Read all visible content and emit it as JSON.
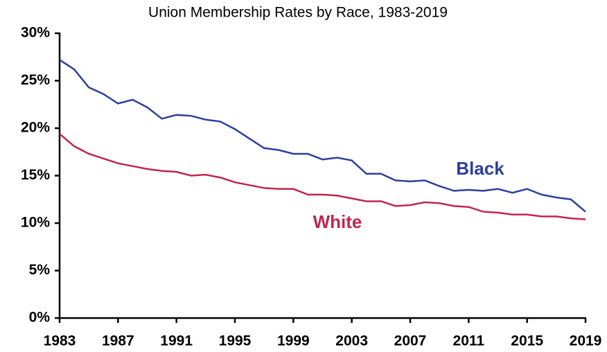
{
  "chart_data": {
    "type": "line",
    "title": "Union Membership Rates by Race, 1983-2019",
    "x": [
      1983,
      1984,
      1985,
      1986,
      1987,
      1988,
      1989,
      1990,
      1991,
      1992,
      1993,
      1994,
      1995,
      1996,
      1997,
      1998,
      1999,
      2000,
      2001,
      2002,
      2003,
      2004,
      2005,
      2006,
      2007,
      2008,
      2009,
      2010,
      2011,
      2012,
      2013,
      2014,
      2015,
      2016,
      2017,
      2018,
      2019
    ],
    "series": [
      {
        "name": "Black",
        "color": "#2e3e9c",
        "values": [
          27.2,
          26.2,
          24.3,
          23.6,
          22.6,
          23.0,
          22.2,
          21.0,
          21.4,
          21.3,
          20.9,
          20.7,
          19.9,
          18.9,
          17.9,
          17.7,
          17.3,
          17.3,
          16.7,
          16.9,
          16.6,
          15.2,
          15.2,
          14.5,
          14.4,
          14.5,
          13.9,
          13.4,
          13.5,
          13.4,
          13.6,
          13.2,
          13.6,
          13.0,
          12.7,
          12.5,
          11.2
        ]
      },
      {
        "name": "White",
        "color": "#c0254e",
        "values": [
          19.4,
          18.1,
          17.3,
          16.8,
          16.3,
          16.0,
          15.7,
          15.5,
          15.4,
          15.0,
          15.1,
          14.8,
          14.3,
          14.0,
          13.7,
          13.6,
          13.6,
          13.0,
          13.0,
          12.9,
          12.6,
          12.3,
          12.3,
          11.8,
          11.9,
          12.2,
          12.1,
          11.8,
          11.7,
          11.2,
          11.1,
          10.9,
          10.9,
          10.7,
          10.7,
          10.5,
          10.4
        ]
      }
    ],
    "xlim": [
      1983,
      2019
    ],
    "xticks": [
      1983,
      1987,
      1991,
      1995,
      1999,
      2003,
      2007,
      2011,
      2015,
      2019
    ],
    "ylim": [
      0,
      30
    ],
    "yticks": [
      {
        "value": 0,
        "label": "0%"
      },
      {
        "value": 5,
        "label": "5%"
      },
      {
        "value": 10,
        "label": "10%"
      },
      {
        "value": 15,
        "label": "15%"
      },
      {
        "value": 20,
        "label": "20%"
      },
      {
        "value": 25,
        "label": "25%"
      },
      {
        "value": 30,
        "label": "30%"
      }
    ],
    "grid": false
  }
}
